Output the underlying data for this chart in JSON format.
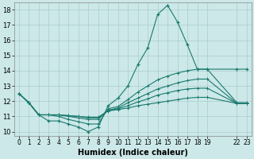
{
  "title": "",
  "xlabel": "Humidex (Indice chaleur)",
  "ylabel": "",
  "bg_color": "#cce8e8",
  "grid_color": "#aacccc",
  "line_color": "#1a7a6e",
  "xlim": [
    -0.5,
    23.5
  ],
  "ylim": [
    9.7,
    18.5
  ],
  "xticks": [
    0,
    1,
    2,
    3,
    4,
    5,
    6,
    7,
    8,
    9,
    10,
    11,
    12,
    13,
    14,
    15,
    16,
    17,
    18,
    19,
    22,
    23
  ],
  "yticks": [
    10,
    11,
    12,
    13,
    14,
    15,
    16,
    17,
    18
  ],
  "line1_x": [
    0,
    1,
    2,
    3,
    4,
    5,
    6,
    7,
    8,
    9,
    10,
    11,
    12,
    13,
    14,
    15,
    16,
    17,
    18,
    19,
    22,
    23
  ],
  "line1_y": [
    12.5,
    11.9,
    11.1,
    10.7,
    10.7,
    10.5,
    10.3,
    10.0,
    10.3,
    11.7,
    12.2,
    13.0,
    14.4,
    15.5,
    17.7,
    18.3,
    17.2,
    15.7,
    14.1,
    14.1,
    14.1,
    14.1
  ],
  "line2_x": [
    0,
    1,
    2,
    3,
    4,
    5,
    6,
    7,
    8,
    9,
    10,
    11,
    12,
    13,
    14,
    15,
    16,
    17,
    18,
    19,
    22,
    23
  ],
  "line2_y": [
    12.5,
    11.9,
    11.1,
    11.1,
    11.0,
    10.8,
    10.65,
    10.5,
    10.5,
    11.5,
    11.65,
    12.1,
    12.6,
    13.0,
    13.4,
    13.65,
    13.85,
    14.0,
    14.1,
    14.1,
    11.9,
    11.9
  ],
  "line3_x": [
    0,
    1,
    2,
    3,
    4,
    5,
    6,
    7,
    8,
    9,
    10,
    11,
    12,
    13,
    14,
    15,
    16,
    17,
    18,
    19,
    22,
    23
  ],
  "line3_y": [
    12.5,
    11.9,
    11.1,
    11.1,
    11.1,
    11.0,
    10.9,
    10.8,
    10.8,
    11.4,
    11.55,
    11.9,
    12.2,
    12.5,
    12.8,
    13.0,
    13.2,
    13.35,
    13.45,
    13.45,
    11.85,
    11.85
  ],
  "line4_x": [
    0,
    1,
    2,
    3,
    4,
    5,
    6,
    7,
    8,
    9,
    10,
    11,
    12,
    13,
    14,
    15,
    16,
    17,
    18,
    19,
    22,
    23
  ],
  "line4_y": [
    12.5,
    11.9,
    11.1,
    11.1,
    11.1,
    11.05,
    11.0,
    10.9,
    10.9,
    11.4,
    11.5,
    11.7,
    11.95,
    12.15,
    12.4,
    12.55,
    12.7,
    12.8,
    12.85,
    12.85,
    11.85,
    11.85
  ],
  "line5_x": [
    0,
    1,
    2,
    3,
    4,
    5,
    6,
    7,
    8,
    9,
    10,
    11,
    12,
    13,
    14,
    15,
    16,
    17,
    18,
    19,
    22,
    23
  ],
  "line5_y": [
    12.5,
    11.9,
    11.1,
    11.1,
    11.1,
    11.05,
    11.0,
    10.95,
    10.95,
    11.35,
    11.45,
    11.55,
    11.7,
    11.8,
    11.9,
    12.0,
    12.1,
    12.2,
    12.25,
    12.25,
    11.85,
    11.85
  ]
}
